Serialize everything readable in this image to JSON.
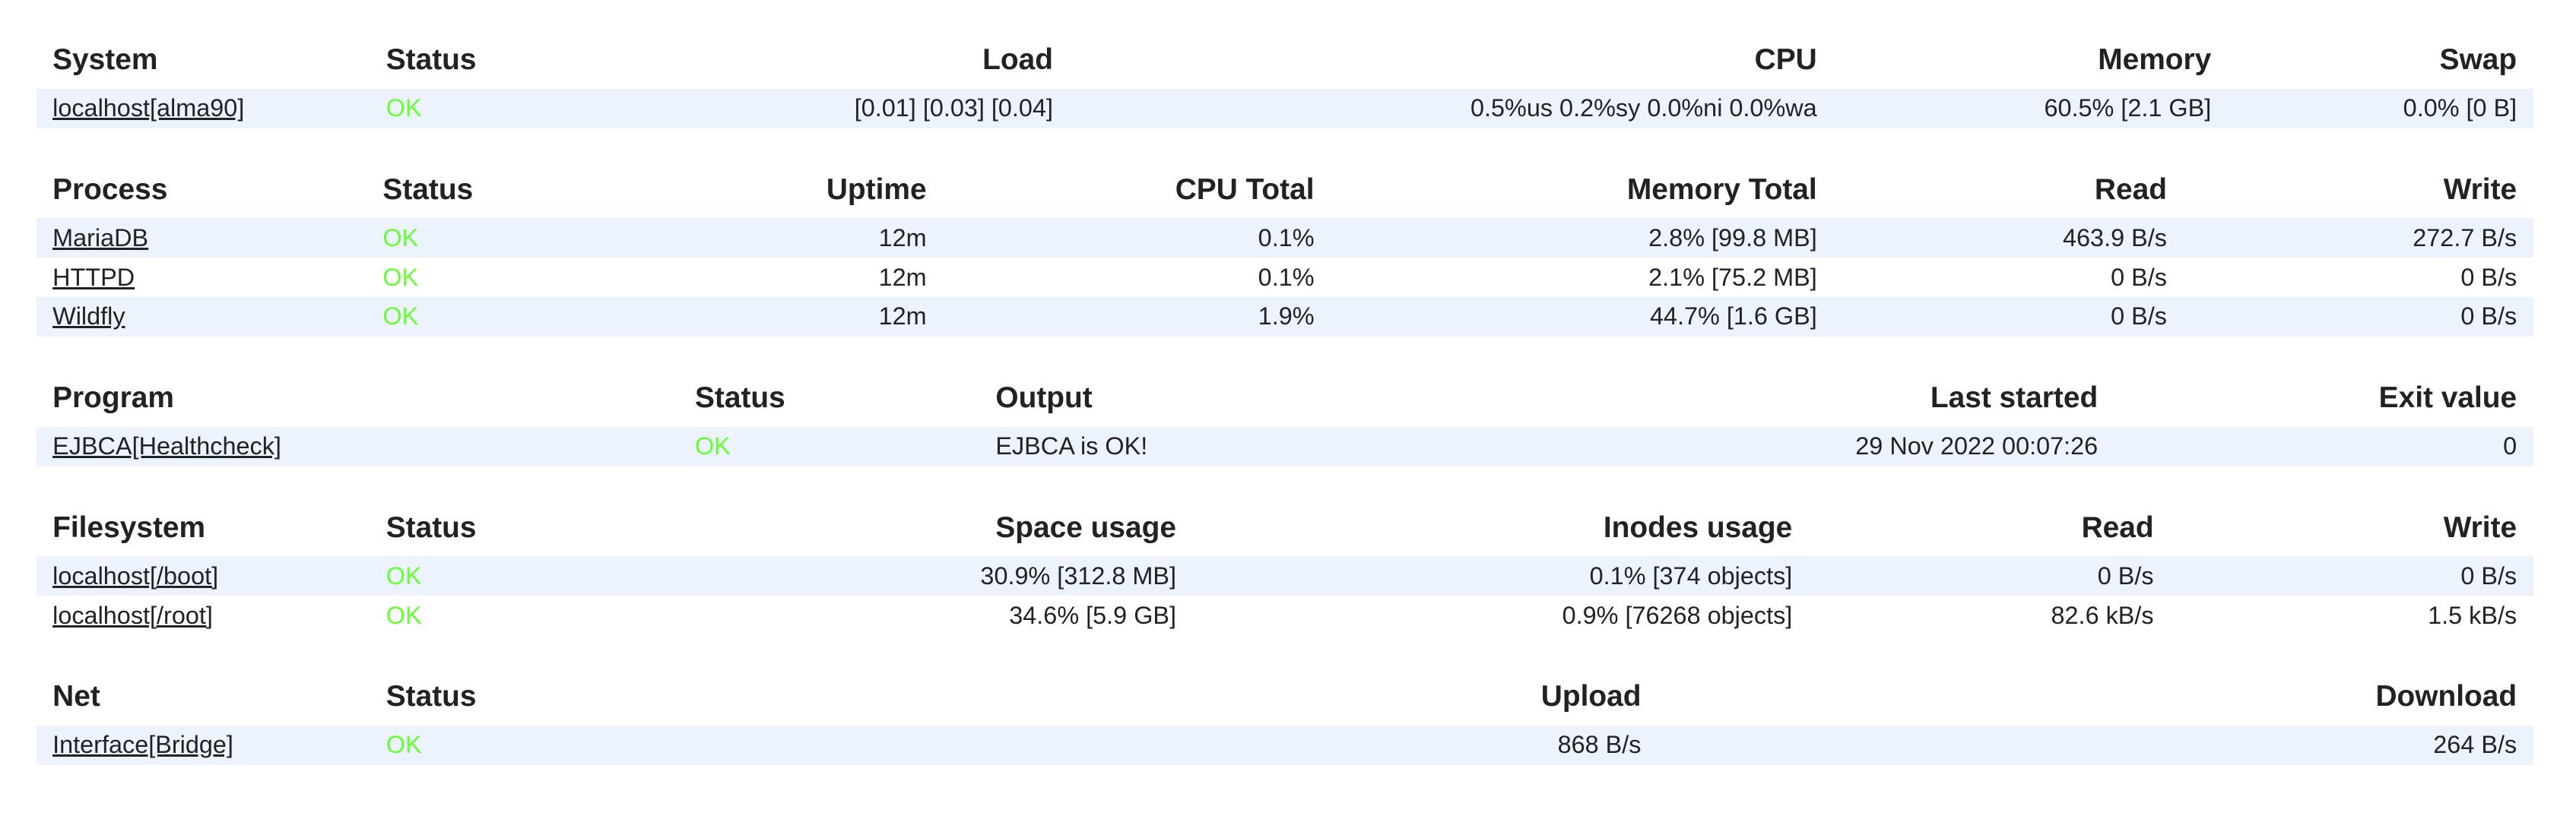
{
  "colors": {
    "ok": "#66ff33",
    "row_alt": "#edf3fd",
    "text": "#222222"
  },
  "tables": [
    {
      "key": "system",
      "columns": [
        "System",
        "Status",
        "Load",
        "CPU",
        "Memory",
        "Swap"
      ],
      "rows": [
        [
          "localhost[alma90]",
          "OK",
          "[0.01] [0.03] [0.04]",
          "0.5%us 0.2%sy 0.0%ni 0.0%wa",
          "60.5% [2.1 GB]",
          "0.0% [0 B]"
        ]
      ]
    },
    {
      "key": "process",
      "columns": [
        "Process",
        "Status",
        "Uptime",
        "CPU Total",
        "Memory Total",
        "Read",
        "Write"
      ],
      "rows": [
        [
          "MariaDB",
          "OK",
          "12m",
          "0.1%",
          "2.8% [99.8 MB]",
          "463.9 B/s",
          "272.7 B/s"
        ],
        [
          "HTTPD",
          "OK",
          "12m",
          "0.1%",
          "2.1% [75.2 MB]",
          "0 B/s",
          "0 B/s"
        ],
        [
          "Wildfly",
          "OK",
          "12m",
          "1.9%",
          "44.7% [1.6 GB]",
          "0 B/s",
          "0 B/s"
        ]
      ]
    },
    {
      "key": "program",
      "columns": [
        "Program",
        "Status",
        "Output",
        "Last started",
        "Exit value"
      ],
      "rows": [
        [
          "EJBCA[Healthcheck]",
          "OK",
          "EJBCA is OK!",
          "29 Nov 2022 00:07:26",
          "0"
        ]
      ]
    },
    {
      "key": "filesystem",
      "columns": [
        "Filesystem",
        "Status",
        "Space usage",
        "Inodes usage",
        "Read",
        "Write"
      ],
      "rows": [
        [
          "localhost[/boot]",
          "OK",
          "30.9% [312.8 MB]",
          "0.1% [374 objects]",
          "0 B/s",
          "0 B/s"
        ],
        [
          "localhost[/root]",
          "OK",
          "34.6% [5.9 GB]",
          "0.9% [76268 objects]",
          "82.6 kB/s",
          "1.5 kB/s"
        ]
      ]
    },
    {
      "key": "net",
      "columns": [
        "Net",
        "Status",
        "Upload",
        "Download"
      ],
      "rows": [
        [
          "Interface[Bridge]",
          "OK",
          "868 B/s",
          "264 B/s"
        ]
      ]
    }
  ]
}
